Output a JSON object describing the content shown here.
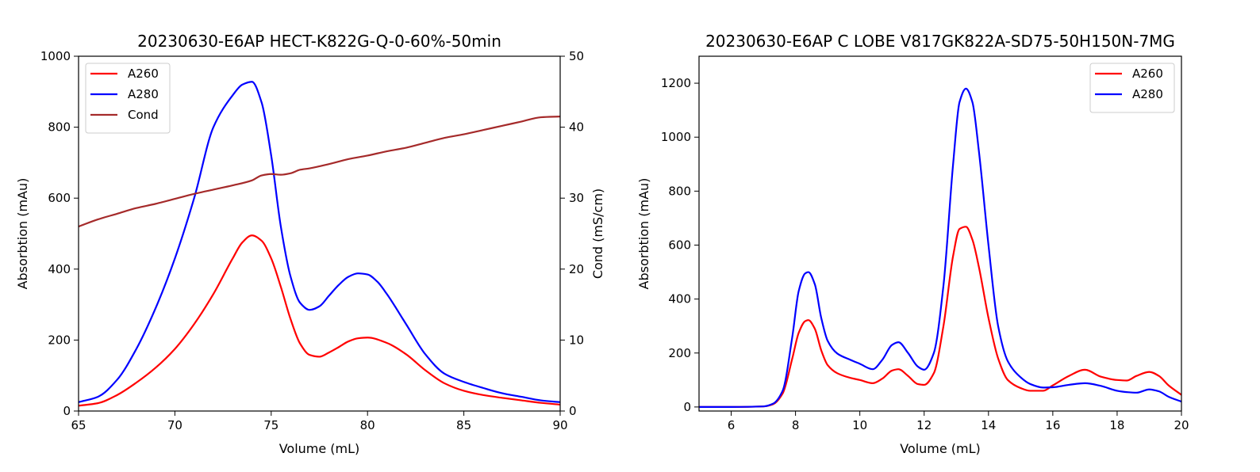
{
  "chart_data": [
    {
      "type": "line",
      "title": "20230630-E6AP HECT-K822G-Q-0-60%-50min",
      "xlabel": "Volume (mL)",
      "ylabel": "Absorbtion (mAu)",
      "y2label": "Cond (mS/cm)",
      "xlim": [
        65,
        90
      ],
      "ylim": [
        0,
        1000
      ],
      "y2lim": [
        0,
        50
      ],
      "xticks": [
        "65",
        "70",
        "75",
        "80",
        "85",
        "90"
      ],
      "yticks": [
        "0",
        "200",
        "400",
        "600",
        "800",
        "1000"
      ],
      "y2ticks": [
        "0",
        "10",
        "20",
        "30",
        "40",
        "50"
      ],
      "legend_position": "upper-left",
      "series": [
        {
          "name": "A260",
          "color": "#ff0000",
          "axis": "left",
          "x": [
            65,
            66,
            67,
            68,
            69,
            70,
            71,
            72,
            73,
            73.5,
            74,
            74.5,
            75,
            75.5,
            76,
            76.5,
            77,
            77.5,
            78,
            78.5,
            79,
            79.5,
            80,
            81,
            82,
            83,
            84,
            85,
            86,
            87,
            88,
            89,
            90
          ],
          "y": [
            15,
            22,
            45,
            80,
            122,
            175,
            245,
            330,
            430,
            475,
            495,
            480,
            430,
            350,
            260,
            190,
            158,
            153,
            165,
            180,
            196,
            205,
            207,
            192,
            160,
            115,
            78,
            57,
            45,
            37,
            30,
            23,
            18
          ]
        },
        {
          "name": "A280",
          "color": "#0000ff",
          "axis": "left",
          "x": [
            65,
            66,
            67,
            68,
            69,
            70,
            71,
            72,
            73,
            73.5,
            74,
            74.5,
            75,
            75.5,
            76,
            76.5,
            77,
            77.5,
            78,
            78.5,
            79,
            79.5,
            80,
            80.5,
            81,
            82,
            83,
            84,
            85,
            86,
            87,
            88,
            89,
            90
          ],
          "y": [
            25,
            40,
            88,
            175,
            290,
            430,
            600,
            800,
            890,
            920,
            928,
            870,
            720,
            520,
            380,
            305,
            285,
            295,
            325,
            355,
            378,
            388,
            385,
            365,
            330,
            245,
            160,
            105,
            82,
            65,
            50,
            40,
            30,
            25
          ]
        },
        {
          "name": "Cond",
          "color": "#a52a2a",
          "axis": "right",
          "x": [
            65,
            66,
            67,
            68,
            69,
            70,
            71,
            72,
            73,
            74,
            74.5,
            75,
            75.5,
            76,
            76.5,
            77,
            78,
            79,
            80,
            81,
            82,
            83,
            84,
            85,
            86,
            87,
            88,
            89,
            90
          ],
          "y": [
            26,
            27,
            27.8,
            28.6,
            29.2,
            29.9,
            30.6,
            31.2,
            31.8,
            32.5,
            33.2,
            33.4,
            33.3,
            33.5,
            34,
            34.2,
            34.8,
            35.5,
            36,
            36.6,
            37.1,
            37.8,
            38.5,
            39,
            39.6,
            40.2,
            40.8,
            41.4,
            41.5
          ]
        }
      ]
    },
    {
      "type": "line",
      "title": "20230630-E6AP C LOBE V817GK822A-SD75-50H150N-7MG",
      "xlabel": "Volume (mL)",
      "ylabel": "Absorbtion (mAu)",
      "xlim": [
        5,
        20
      ],
      "ylim": [
        -15,
        1300
      ],
      "xticks": [
        "6",
        "8",
        "10",
        "12",
        "14",
        "16",
        "18",
        "20"
      ],
      "yticks": [
        "0",
        "200",
        "400",
        "600",
        "800",
        "1000",
        "1200"
      ],
      "legend_position": "upper-right",
      "series": [
        {
          "name": "A260",
          "color": "#ff0000",
          "x": [
            5,
            6,
            7,
            7.3,
            7.6,
            7.9,
            8.1,
            8.3,
            8.4,
            8.6,
            8.8,
            9,
            9.3,
            9.7,
            10,
            10.4,
            10.7,
            11,
            11.2,
            11.5,
            11.8,
            12,
            12.3,
            12.6,
            12.9,
            13.1,
            13.3,
            13.5,
            13.7,
            14,
            14.3,
            14.6,
            15,
            15.3,
            15.7,
            16,
            16.5,
            17,
            17.5,
            18,
            18.3,
            18.6,
            19,
            19.3,
            19.6,
            20
          ],
          "y": [
            0,
            0,
            2,
            10,
            50,
            180,
            275,
            318,
            322,
            290,
            210,
            155,
            125,
            108,
            100,
            88,
            105,
            135,
            140,
            115,
            85,
            82,
            125,
            300,
            560,
            660,
            668,
            620,
            520,
            330,
            180,
            100,
            70,
            60,
            60,
            80,
            115,
            138,
            112,
            100,
            98,
            115,
            130,
            115,
            80,
            45
          ]
        },
        {
          "name": "A280",
          "color": "#0000ff",
          "x": [
            5,
            6,
            7,
            7.3,
            7.6,
            7.9,
            8.1,
            8.3,
            8.4,
            8.6,
            8.8,
            9,
            9.3,
            9.7,
            10,
            10.4,
            10.7,
            11,
            11.2,
            11.5,
            11.8,
            12,
            12.3,
            12.6,
            12.9,
            13.1,
            13.3,
            13.5,
            13.7,
            14,
            14.3,
            14.6,
            15,
            15.3,
            15.7,
            16,
            16.5,
            17,
            17.5,
            18,
            18.3,
            18.6,
            19,
            19.3,
            19.6,
            20
          ],
          "y": [
            0,
            0,
            2,
            12,
            60,
            260,
            430,
            495,
            500,
            455,
            330,
            245,
            198,
            175,
            160,
            140,
            175,
            230,
            240,
            200,
            150,
            138,
            200,
            450,
            900,
            1130,
            1180,
            1130,
            950,
            600,
            300,
            170,
            110,
            85,
            72,
            73,
            82,
            88,
            78,
            60,
            55,
            53,
            65,
            58,
            38,
            20
          ]
        }
      ]
    }
  ]
}
